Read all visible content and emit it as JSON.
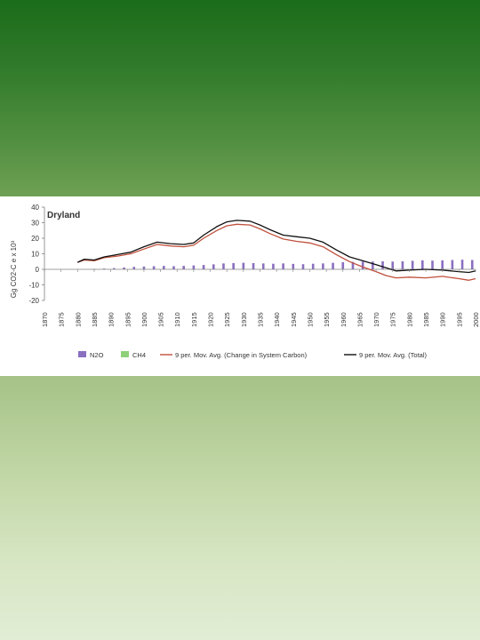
{
  "slide": {
    "colors": {
      "top": "#1b6c1a",
      "bottom": "#e2edd5",
      "panel": "#ffffff"
    }
  },
  "chart_data": {
    "type": "bar",
    "title": "Dryland",
    "xlabel": "",
    "ylabel": "Gg CO2-C e x 10³",
    "ylim": [
      -20,
      40
    ],
    "yticks": [
      -20,
      -10,
      0,
      10,
      20,
      30,
      40
    ],
    "xlim": [
      1870,
      2000
    ],
    "xticks": [
      1870,
      1875,
      1880,
      1885,
      1890,
      1895,
      1900,
      1905,
      1910,
      1915,
      1920,
      1925,
      1930,
      1935,
      1940,
      1945,
      1950,
      1955,
      1960,
      1965,
      1970,
      1975,
      1980,
      1985,
      1990,
      1995,
      2000
    ],
    "grid": false,
    "legend_position": "bottom",
    "series": [
      {
        "name": "N2O",
        "type": "bar",
        "color": "#8b6fc0",
        "x": [
          1885,
          1888,
          1891,
          1894,
          1897,
          1900,
          1903,
          1906,
          1909,
          1912,
          1915,
          1918,
          1921,
          1924,
          1927,
          1930,
          1933,
          1936,
          1939,
          1942,
          1945,
          1948,
          1951,
          1954,
          1957,
          1960,
          1963,
          1966,
          1969,
          1972,
          1975,
          1978,
          1981,
          1984,
          1987,
          1990,
          1993,
          1996,
          1999
        ],
        "values": [
          0.3,
          0.5,
          0.8,
          1.2,
          1.6,
          1.8,
          2.0,
          2.2,
          2.0,
          2.2,
          2.5,
          2.8,
          3.2,
          3.8,
          4.0,
          4.2,
          4.0,
          3.8,
          3.6,
          3.8,
          3.5,
          3.3,
          3.6,
          3.8,
          4.2,
          4.6,
          4.8,
          5.0,
          5.0,
          5.2,
          5.0,
          5.2,
          5.5,
          5.8,
          5.6,
          5.8,
          6.0,
          6.2,
          6.0
        ]
      },
      {
        "name": "CH4",
        "type": "bar",
        "color": "#8fd07a",
        "x": [
          1885,
          1900,
          1915,
          1930,
          1945,
          1960,
          1975,
          1990
        ],
        "values": [
          0.1,
          0.2,
          0.2,
          0.3,
          0.3,
          0.3,
          0.3,
          0.3
        ]
      },
      {
        "name": "9 per. Mov. Avg. (Change in System Carbon)",
        "type": "line",
        "color": "#c0503c",
        "x": [
          1880,
          1882,
          1885,
          1888,
          1892,
          1896,
          1900,
          1904,
          1908,
          1912,
          1915,
          1918,
          1922,
          1925,
          1928,
          1932,
          1935,
          1938,
          1942,
          1946,
          1950,
          1954,
          1958,
          1962,
          1966,
          1970,
          1973,
          1976,
          1980,
          1985,
          1990,
          1995,
          1998,
          2000
        ],
        "values": [
          4.5,
          6.0,
          5.5,
          7.5,
          8.5,
          10.0,
          13.0,
          16.0,
          15.0,
          14.5,
          15.5,
          20.0,
          25.0,
          28.0,
          29.0,
          28.5,
          26.0,
          23.0,
          19.5,
          18.0,
          17.0,
          14.5,
          9.5,
          5.0,
          1.5,
          -1.5,
          -4.0,
          -5.5,
          -5.0,
          -5.5,
          -4.5,
          -6.0,
          -7.0,
          -6.0
        ]
      },
      {
        "name": "9 per. Mov. Avg. (Total)",
        "type": "line",
        "color": "#111111",
        "x": [
          1880,
          1882,
          1885,
          1888,
          1892,
          1896,
          1900,
          1904,
          1908,
          1912,
          1915,
          1918,
          1922,
          1925,
          1928,
          1932,
          1935,
          1938,
          1942,
          1946,
          1950,
          1954,
          1958,
          1962,
          1966,
          1970,
          1973,
          1976,
          1980,
          1985,
          1990,
          1995,
          1998,
          2000
        ],
        "values": [
          4.5,
          6.5,
          6.0,
          8.0,
          9.5,
          11.0,
          14.5,
          17.5,
          16.5,
          16.0,
          17.0,
          22.0,
          27.5,
          30.5,
          31.5,
          31.0,
          28.5,
          25.5,
          22.0,
          21.0,
          20.0,
          17.5,
          12.5,
          8.0,
          5.5,
          3.0,
          1.0,
          -1.0,
          -0.5,
          0.0,
          -0.5,
          -1.5,
          -2.0,
          -1.0
        ]
      }
    ]
  }
}
